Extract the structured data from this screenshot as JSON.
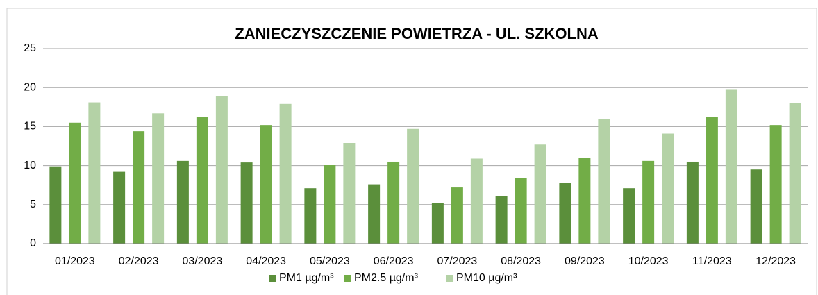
{
  "chart_data": {
    "type": "bar",
    "title": "ZANIECZYSZCZENIE POWIETRZA - UL. SZKOLNA",
    "categories": [
      "01/2023",
      "02/2023",
      "03/2023",
      "04/2023",
      "05/2023",
      "06/2023",
      "07/2023",
      "08/2023",
      "09/2023",
      "10/2023",
      "11/2023",
      "12/2023"
    ],
    "series": [
      {
        "name": "PM1 µg/m³",
        "color": "#5b8f3b",
        "values": [
          9.9,
          9.2,
          10.6,
          10.4,
          7.1,
          7.6,
          5.2,
          6.1,
          7.8,
          7.1,
          10.5,
          9.5
        ]
      },
      {
        "name": "PM2.5 µg/m³",
        "color": "#72ad47",
        "values": [
          15.5,
          14.4,
          16.2,
          15.2,
          10.1,
          10.5,
          7.2,
          8.4,
          11.0,
          10.6,
          16.2,
          15.2
        ]
      },
      {
        "name": "PM10 µg/m³",
        "color": "#b4d2a6",
        "values": [
          18.1,
          16.7,
          18.9,
          17.9,
          12.9,
          14.7,
          10.9,
          12.7,
          16.0,
          14.1,
          19.8,
          18.0
        ]
      }
    ],
    "ylim": [
      0,
      25
    ],
    "yticks": [
      0,
      5,
      10,
      15,
      20,
      25
    ],
    "grid": true,
    "legend": "bottom"
  }
}
